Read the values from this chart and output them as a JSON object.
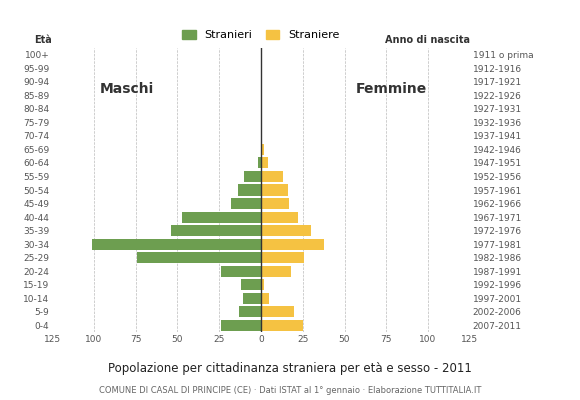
{
  "age_groups": [
    "0-4",
    "5-9",
    "10-14",
    "15-19",
    "20-24",
    "25-29",
    "30-34",
    "35-39",
    "40-44",
    "45-49",
    "50-54",
    "55-59",
    "60-64",
    "65-69",
    "70-74",
    "75-79",
    "80-84",
    "85-89",
    "90-94",
    "95-99",
    "100+"
  ],
  "birth_years": [
    "2007-2011",
    "2002-2006",
    "1997-2001",
    "1992-1996",
    "1987-1991",
    "1982-1986",
    "1977-1981",
    "1972-1976",
    "1967-1971",
    "1962-1966",
    "1957-1961",
    "1952-1956",
    "1947-1951",
    "1942-1946",
    "1937-1941",
    "1932-1936",
    "1927-1931",
    "1922-1926",
    "1917-1921",
    "1912-1916",
    "1911 o prima"
  ],
  "males": [
    24,
    13,
    11,
    12,
    24,
    74,
    101,
    54,
    47,
    18,
    14,
    10,
    2,
    0,
    0,
    0,
    0,
    0,
    0,
    0,
    0
  ],
  "females": [
    25,
    20,
    5,
    2,
    18,
    26,
    38,
    30,
    22,
    17,
    16,
    13,
    4,
    2,
    0,
    0,
    0,
    0,
    0,
    0,
    0
  ],
  "male_color": "#6d9e50",
  "female_color": "#f5c242",
  "background_color": "#ffffff",
  "grid_color": "#aaaaaa",
  "title": "Popolazione per cittadinanza straniera per età e sesso - 2011",
  "subtitle": "COMUNE DI CASAL DI PRINCIPE (CE) · Dati ISTAT al 1° gennaio · Elaborazione TUTTITALIA.IT",
  "legend_male": "Stranieri",
  "legend_female": "Straniere",
  "eta_label": "Età",
  "anno_label": "Anno di nascita",
  "maschi_label": "Maschi",
  "femmine_label": "Femmine",
  "xlim": 125,
  "bar_height": 0.82
}
